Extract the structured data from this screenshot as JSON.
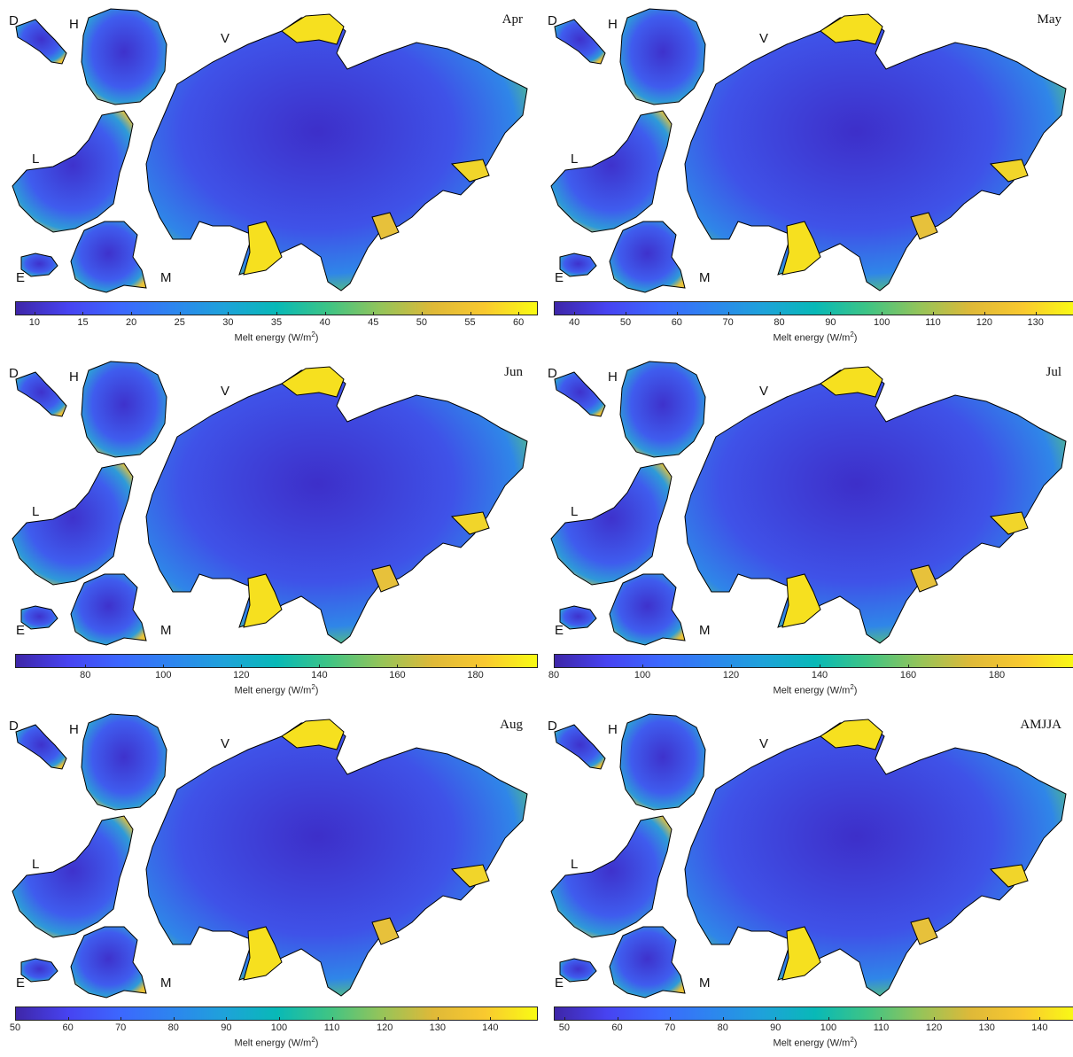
{
  "regions": {
    "D": "D",
    "H": "H",
    "L": "L",
    "V": "V",
    "E": "E",
    "M": "M"
  },
  "colorbar_label_prefix": "Melt energy (W/m",
  "colorbar_label_exp": "2",
  "colorbar_label_suffix": ")",
  "colormap": "parula",
  "colors": {
    "low": "#3e26a8",
    "mid": "#08b9b7",
    "high": "#f9fb14",
    "outline": "#000000"
  },
  "panels": [
    {
      "title": "Apr",
      "ticks": [
        "10",
        "15",
        "20",
        "25",
        "30",
        "35",
        "40",
        "45",
        "50",
        "55",
        "60"
      ],
      "range": [
        8,
        62
      ],
      "tickValues": [
        10,
        15,
        20,
        25,
        30,
        35,
        40,
        45,
        50,
        55,
        60
      ]
    },
    {
      "title": "May",
      "ticks": [
        "40",
        "50",
        "60",
        "70",
        "80",
        "90",
        "100",
        "110",
        "120",
        "130"
      ],
      "range": [
        36,
        138
      ],
      "tickValues": [
        40,
        50,
        60,
        70,
        80,
        90,
        100,
        110,
        120,
        130
      ]
    },
    {
      "title": "Jun",
      "ticks": [
        "80",
        "100",
        "120",
        "140",
        "160",
        "180"
      ],
      "range": [
        62,
        196
      ],
      "tickValues": [
        80,
        100,
        120,
        140,
        160,
        180
      ]
    },
    {
      "title": "Jul",
      "ticks": [
        "80",
        "100",
        "120",
        "140",
        "160",
        "180"
      ],
      "range": [
        80,
        198
      ],
      "tickValues": [
        80,
        100,
        120,
        140,
        160,
        180
      ]
    },
    {
      "title": "Aug",
      "ticks": [
        "50",
        "60",
        "70",
        "80",
        "90",
        "100",
        "110",
        "120",
        "130",
        "140"
      ],
      "range": [
        50,
        149
      ],
      "tickValues": [
        50,
        60,
        70,
        80,
        90,
        100,
        110,
        120,
        130,
        140
      ]
    },
    {
      "title": "AMJJA",
      "ticks": [
        "50",
        "60",
        "70",
        "80",
        "90",
        "100",
        "110",
        "120",
        "130",
        "140"
      ],
      "range": [
        48,
        147
      ],
      "tickValues": [
        50,
        60,
        70,
        80,
        90,
        100,
        110,
        120,
        130,
        140
      ]
    }
  ]
}
